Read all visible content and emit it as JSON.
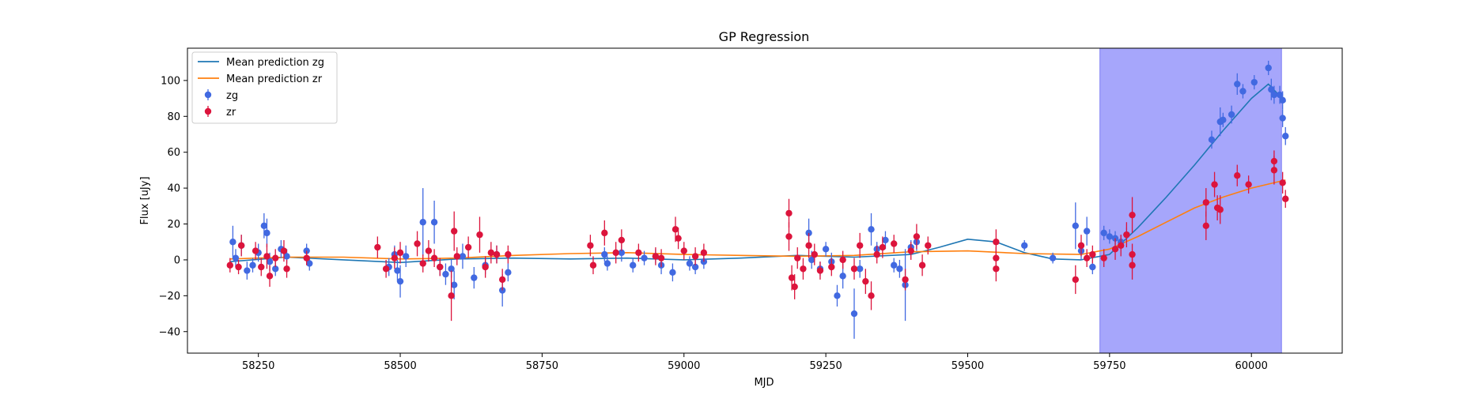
{
  "chart_data": {
    "type": "scatter",
    "title": "GP Regression",
    "xlabel": "MJD",
    "ylabel": "Flux [uJy]",
    "xlim": [
      58125,
      60160
    ],
    "ylim": [
      -52,
      118
    ],
    "xticks": [
      58250,
      58500,
      58750,
      59000,
      59250,
      59500,
      59750,
      60000
    ],
    "yticks": [
      -40,
      -20,
      0,
      20,
      40,
      60,
      80,
      100
    ],
    "grid": false,
    "legend_position": "top-left",
    "highlight_region": {
      "x0": 59733,
      "x1": 60053,
      "color": "#a6a6fb"
    },
    "legend": [
      {
        "label": "Mean prediction zg",
        "kind": "line",
        "color": "#1f77b4"
      },
      {
        "label": "Mean prediction zr",
        "kind": "line",
        "color": "#ff7f0e"
      },
      {
        "label": "zg",
        "kind": "marker",
        "color": "#4169e1"
      },
      {
        "label": "zr",
        "kind": "marker",
        "color": "#dc143c"
      }
    ],
    "lines": [
      {
        "name": "Mean prediction zg",
        "color": "#1f77b4",
        "points": [
          [
            58200,
            -1
          ],
          [
            58300,
            1.5
          ],
          [
            58400,
            0
          ],
          [
            58500,
            -1.5
          ],
          [
            58600,
            0.5
          ],
          [
            58700,
            1
          ],
          [
            58800,
            0.5
          ],
          [
            58900,
            1
          ],
          [
            59000,
            0
          ],
          [
            59100,
            1
          ],
          [
            59200,
            2.5
          ],
          [
            59300,
            1.5
          ],
          [
            59400,
            3
          ],
          [
            59450,
            7
          ],
          [
            59500,
            11.5
          ],
          [
            59550,
            10
          ],
          [
            59600,
            4
          ],
          [
            59650,
            0.5
          ],
          [
            59700,
            0
          ],
          [
            59750,
            3
          ],
          [
            59800,
            18
          ],
          [
            59850,
            35
          ],
          [
            59900,
            53
          ],
          [
            59950,
            72
          ],
          [
            60000,
            90
          ],
          [
            60030,
            98
          ],
          [
            60060,
            88
          ]
        ]
      },
      {
        "name": "Mean prediction zr",
        "color": "#ff7f0e",
        "points": [
          [
            58200,
            0.5
          ],
          [
            58300,
            1.5
          ],
          [
            58400,
            1.5
          ],
          [
            58500,
            0.5
          ],
          [
            58600,
            1
          ],
          [
            58700,
            2.5
          ],
          [
            58800,
            3.5
          ],
          [
            58900,
            4
          ],
          [
            59000,
            3
          ],
          [
            59100,
            2.5
          ],
          [
            59200,
            2
          ],
          [
            59300,
            2.5
          ],
          [
            59400,
            4.5
          ],
          [
            59500,
            5
          ],
          [
            59600,
            3.5
          ],
          [
            59700,
            3
          ],
          [
            59750,
            6
          ],
          [
            59800,
            13
          ],
          [
            59850,
            21
          ],
          [
            59900,
            29
          ],
          [
            59950,
            35
          ],
          [
            60000,
            40
          ],
          [
            60060,
            44.5
          ]
        ]
      }
    ],
    "series": [
      {
        "name": "zg",
        "color": "#4169e1",
        "points": [
          [
            58205,
            10,
            9
          ],
          [
            58210,
            1,
            5
          ],
          [
            58220,
            8,
            6
          ],
          [
            58230,
            -6,
            5
          ],
          [
            58240,
            -3,
            4
          ],
          [
            58250,
            4,
            5
          ],
          [
            58260,
            19,
            7
          ],
          [
            58265,
            15,
            8
          ],
          [
            58270,
            -1,
            5
          ],
          [
            58280,
            -5,
            4
          ],
          [
            58290,
            6,
            5
          ],
          [
            58300,
            2,
            4
          ],
          [
            58335,
            5,
            4
          ],
          [
            58340,
            -2,
            4
          ],
          [
            58480,
            -4,
            5
          ],
          [
            58490,
            3,
            5
          ],
          [
            58495,
            -6,
            6
          ],
          [
            58500,
            -12,
            9
          ],
          [
            58510,
            2,
            6
          ],
          [
            58540,
            21,
            19
          ],
          [
            58560,
            21,
            12
          ],
          [
            58570,
            -4,
            5
          ],
          [
            58580,
            -8,
            6
          ],
          [
            58590,
            -5,
            5
          ],
          [
            58595,
            -14,
            8
          ],
          [
            58610,
            2,
            7
          ],
          [
            58630,
            -10,
            6
          ],
          [
            58650,
            -3,
            5
          ],
          [
            58670,
            3,
            5
          ],
          [
            58680,
            -17,
            9
          ],
          [
            58690,
            -7,
            5
          ],
          [
            58860,
            3,
            4
          ],
          [
            58865,
            -2,
            4
          ],
          [
            58890,
            4,
            5
          ],
          [
            58910,
            -3,
            4
          ],
          [
            58930,
            1,
            4
          ],
          [
            58950,
            2,
            4
          ],
          [
            58960,
            -3,
            5
          ],
          [
            58980,
            -7,
            5
          ],
          [
            59010,
            -2,
            4
          ],
          [
            59020,
            -4,
            4
          ],
          [
            59035,
            -1,
            4
          ],
          [
            59220,
            15,
            8
          ],
          [
            59225,
            0,
            5
          ],
          [
            59240,
            -5,
            4
          ],
          [
            59250,
            6,
            4
          ],
          [
            59260,
            -1,
            5
          ],
          [
            59270,
            -20,
            6
          ],
          [
            59280,
            -9,
            7
          ],
          [
            59300,
            -30,
            14
          ],
          [
            59310,
            -5,
            5
          ],
          [
            59330,
            17,
            9
          ],
          [
            59340,
            6,
            4
          ],
          [
            59355,
            11,
            5
          ],
          [
            59370,
            -3,
            4
          ],
          [
            59380,
            -5,
            5
          ],
          [
            59390,
            -14,
            20
          ],
          [
            59400,
            7,
            4
          ],
          [
            59410,
            10,
            5
          ],
          [
            59600,
            8,
            3
          ],
          [
            59650,
            1,
            3
          ],
          [
            59690,
            19,
            13
          ],
          [
            59700,
            5,
            5
          ],
          [
            59710,
            16,
            8
          ],
          [
            59720,
            -4,
            4
          ],
          [
            59740,
            15,
            4
          ],
          [
            59750,
            13,
            4
          ],
          [
            59760,
            12,
            4
          ],
          [
            59770,
            10,
            4
          ],
          [
            59780,
            14,
            4
          ],
          [
            59930,
            67,
            5
          ],
          [
            59945,
            77,
            8
          ],
          [
            59950,
            78,
            4
          ],
          [
            59965,
            81,
            5
          ],
          [
            59975,
            98,
            6
          ],
          [
            59985,
            94,
            4
          ],
          [
            60005,
            99,
            4
          ],
          [
            60030,
            107,
            4
          ],
          [
            60035,
            95,
            6
          ],
          [
            60040,
            92,
            5
          ],
          [
            60050,
            92,
            5
          ],
          [
            60055,
            89,
            5
          ],
          [
            60055,
            79,
            5
          ],
          [
            60060,
            69,
            5
          ]
        ]
      },
      {
        "name": "zr",
        "color": "#dc143c",
        "points": [
          [
            58200,
            -3,
            4
          ],
          [
            58215,
            -4,
            4
          ],
          [
            58220,
            8,
            6
          ],
          [
            58245,
            5,
            5
          ],
          [
            58255,
            -4,
            5
          ],
          [
            58265,
            2,
            7
          ],
          [
            58270,
            -9,
            6
          ],
          [
            58280,
            1,
            5
          ],
          [
            58295,
            5,
            6
          ],
          [
            58300,
            -5,
            5
          ],
          [
            58335,
            1,
            4
          ],
          [
            58460,
            7,
            6
          ],
          [
            58475,
            -5,
            5
          ],
          [
            58490,
            1,
            6
          ],
          [
            58500,
            4,
            6
          ],
          [
            58530,
            9,
            7
          ],
          [
            58540,
            -2,
            5
          ],
          [
            58550,
            5,
            6
          ],
          [
            58560,
            1,
            5
          ],
          [
            58570,
            -4,
            5
          ],
          [
            58590,
            -20,
            14
          ],
          [
            58595,
            16,
            11
          ],
          [
            58600,
            2,
            5
          ],
          [
            58620,
            7,
            6
          ],
          [
            58640,
            14,
            10
          ],
          [
            58650,
            -4,
            6
          ],
          [
            58660,
            4,
            6
          ],
          [
            58670,
            3,
            5
          ],
          [
            58680,
            -11,
            6
          ],
          [
            58690,
            3,
            5
          ],
          [
            58835,
            8,
            6
          ],
          [
            58840,
            -3,
            5
          ],
          [
            58860,
            15,
            7
          ],
          [
            58880,
            4,
            6
          ],
          [
            58890,
            11,
            6
          ],
          [
            58920,
            4,
            5
          ],
          [
            58950,
            2,
            5
          ],
          [
            58960,
            1,
            5
          ],
          [
            58985,
            17,
            7
          ],
          [
            58990,
            12,
            6
          ],
          [
            59000,
            5,
            5
          ],
          [
            59020,
            2,
            5
          ],
          [
            59035,
            4,
            5
          ],
          [
            59185,
            26,
            8
          ],
          [
            59185,
            13,
            8
          ],
          [
            59190,
            -10,
            7
          ],
          [
            59195,
            -15,
            7
          ],
          [
            59200,
            1,
            6
          ],
          [
            59210,
            -5,
            6
          ],
          [
            59220,
            8,
            7
          ],
          [
            59230,
            3,
            6
          ],
          [
            59240,
            -6,
            5
          ],
          [
            59260,
            -4,
            5
          ],
          [
            59280,
            0,
            5
          ],
          [
            59300,
            -5,
            6
          ],
          [
            59310,
            8,
            7
          ],
          [
            59320,
            -12,
            7
          ],
          [
            59330,
            -20,
            8
          ],
          [
            59340,
            3,
            5
          ],
          [
            59350,
            7,
            6
          ],
          [
            59370,
            9,
            5
          ],
          [
            59390,
            -11,
            6
          ],
          [
            59400,
            5,
            5
          ],
          [
            59410,
            13,
            7
          ],
          [
            59420,
            -3,
            6
          ],
          [
            59430,
            8,
            5
          ],
          [
            59550,
            10,
            7
          ],
          [
            59550,
            1,
            6
          ],
          [
            59550,
            -5,
            7
          ],
          [
            59690,
            -11,
            8
          ],
          [
            59700,
            8,
            6
          ],
          [
            59710,
            1,
            5
          ],
          [
            59720,
            3,
            5
          ],
          [
            59740,
            1,
            5
          ],
          [
            59760,
            6,
            6
          ],
          [
            59770,
            8,
            6
          ],
          [
            59780,
            14,
            7
          ],
          [
            59790,
            25,
            10
          ],
          [
            59790,
            3,
            6
          ],
          [
            59790,
            -3,
            8
          ],
          [
            59920,
            19,
            8
          ],
          [
            59920,
            32,
            8
          ],
          [
            59935,
            42,
            7
          ],
          [
            59940,
            29,
            7
          ],
          [
            59945,
            28,
            8
          ],
          [
            59975,
            47,
            6
          ],
          [
            59995,
            42,
            5
          ],
          [
            60040,
            55,
            6
          ],
          [
            60040,
            50,
            8
          ],
          [
            60055,
            43,
            6
          ],
          [
            60060,
            34,
            5
          ]
        ]
      }
    ]
  }
}
